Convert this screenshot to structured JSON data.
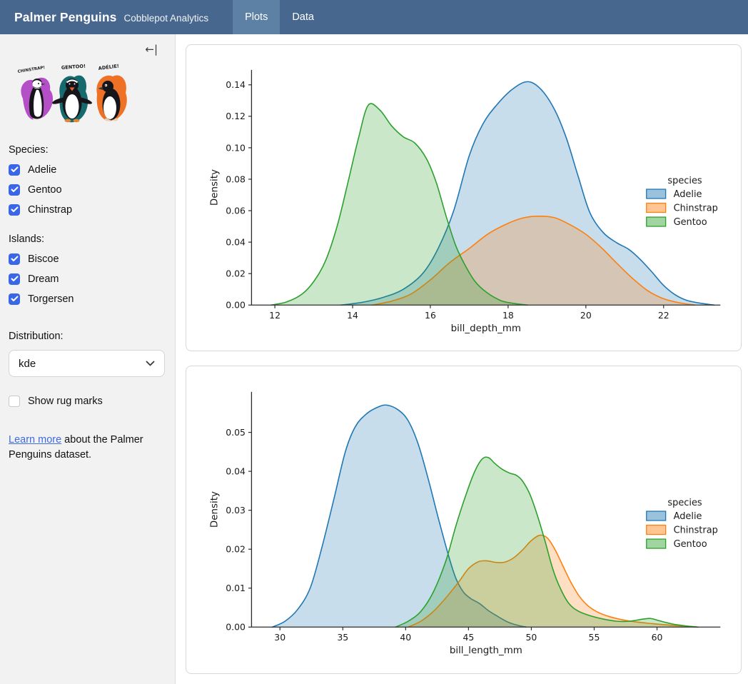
{
  "navbar": {
    "title": "Palmer Penguins",
    "subtitle": "Cobblepot Analytics",
    "tabs": [
      {
        "label": "Plots",
        "active": true
      },
      {
        "label": "Data",
        "active": false
      }
    ]
  },
  "icons": {
    "sidebar_collapse": "←|"
  },
  "theme": {
    "navbar_bg": "#47678f",
    "navbar_active": "#5d80a5",
    "checkbox_accent": "#3a66e8",
    "link_color": "#3f6be0"
  },
  "sidebar": {
    "artwork": {
      "labels": [
        "CHINSTRAP!",
        "GENTOO!",
        "ADÉLIE!"
      ],
      "splash_colors": [
        "#b44fc8",
        "#156a6e",
        "#ee7125"
      ]
    },
    "species_filter": {
      "label": "Species:",
      "options": [
        {
          "label": "Adelie",
          "checked": true
        },
        {
          "label": "Gentoo",
          "checked": true
        },
        {
          "label": "Chinstrap",
          "checked": true
        }
      ]
    },
    "island_filter": {
      "label": "Islands:",
      "options": [
        {
          "label": "Biscoe",
          "checked": true
        },
        {
          "label": "Dream",
          "checked": true
        },
        {
          "label": "Torgersen",
          "checked": true
        }
      ]
    },
    "distribution": {
      "label": "Distribution:",
      "value": "kde"
    },
    "rug": {
      "label": "Show rug marks",
      "checked": false
    },
    "footer_note": {
      "link_text": "Learn more",
      "rest_text": " about the Palmer Penguins dataset."
    }
  },
  "chart_data": [
    {
      "type": "area",
      "kind": "kde-density",
      "xlabel": "bill_depth_mm",
      "ylabel": "Density",
      "xlim": [
        11.4,
        23.46
      ],
      "ylim": [
        0,
        0.1495
      ],
      "xticks": {
        "values": [
          12,
          14,
          16,
          18,
          20,
          22
        ],
        "labels": [
          "12",
          "14",
          "16",
          "18",
          "20",
          "22"
        ]
      },
      "yticks": {
        "values": [
          0,
          0.02,
          0.04,
          0.06,
          0.08,
          0.1,
          0.12,
          0.14
        ],
        "labels": [
          "0.00",
          "0.02",
          "0.04",
          "0.06",
          "0.08",
          "0.10",
          "0.12",
          "0.14"
        ]
      },
      "legend": {
        "title": "species",
        "position": "right"
      },
      "series": [
        {
          "name": "Adelie",
          "color": "#1f77b4",
          "points": [
            [
              13.7,
              0
            ],
            [
              14.3,
              0.002
            ],
            [
              14.8,
              0.005
            ],
            [
              15.3,
              0.01
            ],
            [
              15.8,
              0.02
            ],
            [
              16.2,
              0.036
            ],
            [
              16.6,
              0.06
            ],
            [
              17.0,
              0.095
            ],
            [
              17.35,
              0.115
            ],
            [
              17.7,
              0.127
            ],
            [
              18.1,
              0.137
            ],
            [
              18.5,
              0.142
            ],
            [
              18.85,
              0.137
            ],
            [
              19.2,
              0.124
            ],
            [
              19.5,
              0.106
            ],
            [
              19.8,
              0.082
            ],
            [
              20.1,
              0.059
            ],
            [
              20.45,
              0.046
            ],
            [
              20.8,
              0.0395
            ],
            [
              21.1,
              0.0355
            ],
            [
              21.4,
              0.029
            ],
            [
              21.7,
              0.021
            ],
            [
              22.0,
              0.0125
            ],
            [
              22.3,
              0.0065
            ],
            [
              22.6,
              0.003
            ],
            [
              23.0,
              0.001
            ],
            [
              23.3,
              0
            ]
          ]
        },
        {
          "name": "Chinstrap",
          "color": "#ff7f0e",
          "points": [
            [
              14.5,
              0
            ],
            [
              15.0,
              0.0025
            ],
            [
              15.5,
              0.007
            ],
            [
              16.0,
              0.016
            ],
            [
              16.5,
              0.027
            ],
            [
              17.0,
              0.036
            ],
            [
              17.5,
              0.0455
            ],
            [
              18.0,
              0.052
            ],
            [
              18.4,
              0.0555
            ],
            [
              18.8,
              0.0565
            ],
            [
              19.2,
              0.0555
            ],
            [
              19.6,
              0.051
            ],
            [
              20.0,
              0.045
            ],
            [
              20.4,
              0.0365
            ],
            [
              20.8,
              0.0265
            ],
            [
              21.2,
              0.017
            ],
            [
              21.6,
              0.009
            ],
            [
              22.0,
              0.004
            ],
            [
              22.4,
              0.0015
            ],
            [
              22.8,
              0
            ]
          ]
        },
        {
          "name": "Gentoo",
          "color": "#2ca02c",
          "points": [
            [
              11.9,
              0
            ],
            [
              12.3,
              0.002
            ],
            [
              12.7,
              0.007
            ],
            [
              13.0,
              0.015
            ],
            [
              13.3,
              0.028
            ],
            [
              13.6,
              0.05
            ],
            [
              13.9,
              0.08
            ],
            [
              14.15,
              0.106
            ],
            [
              14.4,
              0.127
            ],
            [
              14.7,
              0.124
            ],
            [
              15.0,
              0.114
            ],
            [
              15.3,
              0.107
            ],
            [
              15.6,
              0.103
            ],
            [
              15.9,
              0.093
            ],
            [
              16.15,
              0.078
            ],
            [
              16.4,
              0.057
            ],
            [
              16.65,
              0.038
            ],
            [
              16.9,
              0.025
            ],
            [
              17.15,
              0.015
            ],
            [
              17.45,
              0.008
            ],
            [
              17.8,
              0.003
            ],
            [
              18.1,
              0.0012
            ],
            [
              18.5,
              0
            ]
          ]
        }
      ]
    },
    {
      "type": "area",
      "kind": "kde-density",
      "xlabel": "bill_length_mm",
      "ylabel": "Density",
      "xlim": [
        27.74,
        65.04
      ],
      "ylim": [
        0,
        0.0604
      ],
      "xticks": {
        "values": [
          30,
          35,
          40,
          45,
          50,
          55,
          60
        ],
        "labels": [
          "30",
          "35",
          "40",
          "45",
          "50",
          "55",
          "60"
        ]
      },
      "yticks": {
        "values": [
          0,
          0.01,
          0.02,
          0.03,
          0.04,
          0.05
        ],
        "labels": [
          "0.00",
          "0.01",
          "0.02",
          "0.03",
          "0.04",
          "0.05"
        ]
      },
      "legend": {
        "title": "species",
        "position": "right"
      },
      "series": [
        {
          "name": "Adelie",
          "color": "#1f77b4",
          "points": [
            [
              29.4,
              0
            ],
            [
              30.4,
              0.0015
            ],
            [
              31.4,
              0.0045
            ],
            [
              32.4,
              0.01
            ],
            [
              33.3,
              0.02
            ],
            [
              34.3,
              0.033
            ],
            [
              35.2,
              0.045
            ],
            [
              36.0,
              0.0515
            ],
            [
              36.9,
              0.0548
            ],
            [
              37.8,
              0.0565
            ],
            [
              38.5,
              0.057
            ],
            [
              39.4,
              0.0558
            ],
            [
              40.2,
              0.053
            ],
            [
              41.0,
              0.047
            ],
            [
              41.8,
              0.038
            ],
            [
              42.6,
              0.028
            ],
            [
              43.4,
              0.0185
            ],
            [
              44.0,
              0.0125
            ],
            [
              44.6,
              0.009
            ],
            [
              45.2,
              0.0073
            ],
            [
              45.9,
              0.006
            ],
            [
              46.6,
              0.0042
            ],
            [
              47.4,
              0.0026
            ],
            [
              48.2,
              0.0012
            ],
            [
              49.0,
              0.0004
            ],
            [
              49.6,
              0
            ]
          ]
        },
        {
          "name": "Chinstrap",
          "color": "#ff7f0e",
          "points": [
            [
              40.2,
              0
            ],
            [
              41.2,
              0.0015
            ],
            [
              42.2,
              0.004
            ],
            [
              43.2,
              0.0075
            ],
            [
              44.2,
              0.0115
            ],
            [
              45.0,
              0.015
            ],
            [
              45.8,
              0.0168
            ],
            [
              46.5,
              0.017
            ],
            [
              47.2,
              0.0166
            ],
            [
              47.9,
              0.0167
            ],
            [
              48.6,
              0.0178
            ],
            [
              49.3,
              0.0198
            ],
            [
              50.0,
              0.0222
            ],
            [
              50.7,
              0.0236
            ],
            [
              51.3,
              0.0228
            ],
            [
              51.9,
              0.0198
            ],
            [
              52.5,
              0.0158
            ],
            [
              53.1,
              0.0118
            ],
            [
              53.8,
              0.008
            ],
            [
              54.5,
              0.0055
            ],
            [
              55.3,
              0.0038
            ],
            [
              56.2,
              0.0027
            ],
            [
              57.2,
              0.0019
            ],
            [
              58.4,
              0.0013
            ],
            [
              59.6,
              0.0009
            ],
            [
              61.0,
              0.0005
            ],
            [
              62.4,
              0.0002
            ],
            [
              63.3,
              0
            ]
          ]
        },
        {
          "name": "Gentoo",
          "color": "#2ca02c",
          "points": [
            [
              39.2,
              0
            ],
            [
              40.2,
              0.0015
            ],
            [
              41.2,
              0.004
            ],
            [
              42.2,
              0.009
            ],
            [
              43.2,
              0.017
            ],
            [
              44.0,
              0.026
            ],
            [
              44.8,
              0.034
            ],
            [
              45.5,
              0.04
            ],
            [
              46.1,
              0.0432
            ],
            [
              46.6,
              0.0435
            ],
            [
              47.1,
              0.042
            ],
            [
              47.7,
              0.0405
            ],
            [
              48.3,
              0.0395
            ],
            [
              48.8,
              0.039
            ],
            [
              49.3,
              0.0375
            ],
            [
              49.9,
              0.034
            ],
            [
              50.5,
              0.0285
            ],
            [
              51.1,
              0.022
            ],
            [
              51.7,
              0.015
            ],
            [
              52.3,
              0.01
            ],
            [
              53.0,
              0.006
            ],
            [
              53.8,
              0.004
            ],
            [
              54.8,
              0.0028
            ],
            [
              55.8,
              0.002
            ],
            [
              56.8,
              0.0015
            ],
            [
              57.8,
              0.0015
            ],
            [
              58.8,
              0.002
            ],
            [
              59.5,
              0.0022
            ],
            [
              60.2,
              0.0016
            ],
            [
              61.2,
              0.0008
            ],
            [
              62.3,
              0.0003
            ],
            [
              63.2,
              0
            ]
          ]
        }
      ]
    }
  ]
}
